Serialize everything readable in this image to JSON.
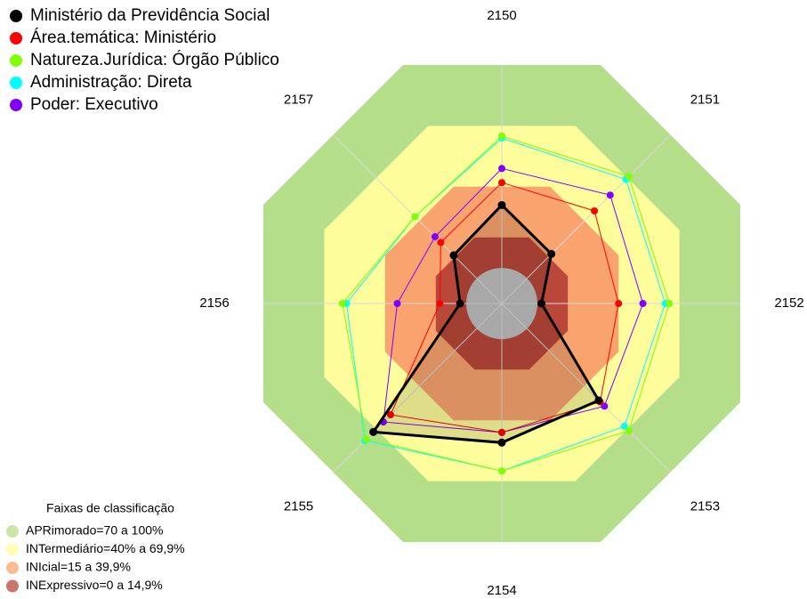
{
  "chart_data": {
    "type": "radar",
    "categories": [
      "2150",
      "2151",
      "2152",
      "2153",
      "2154",
      "2155",
      "2156",
      "2157"
    ],
    "ylim": [
      0,
      100
    ],
    "series": [
      {
        "name": "Ministério da Previdência Social",
        "color": "#000000",
        "values": [
          31,
          17,
          2,
          50,
          51,
          72,
          3,
          16
        ]
      },
      {
        "name": "Área.temática: Ministério",
        "color": "#ff0000",
        "values": [
          42,
          47,
          40,
          51,
          46,
          60,
          13,
          25
        ]
      },
      {
        "name": "Natureza.Jurídica: Órgão Público",
        "color": "#80ff00",
        "values": [
          65,
          71,
          65,
          71,
          65,
          77,
          61,
          43
        ]
      },
      {
        "name": "Administração: Direta",
        "color": "#00ffff",
        "values": [
          64,
          69,
          63,
          68,
          65,
          78,
          59,
          43
        ]
      },
      {
        "name": "Poder: Executivo",
        "color": "#8000ff",
        "values": [
          49,
          58,
          52,
          54,
          46,
          65,
          34,
          29
        ]
      }
    ],
    "legend_title": "Faixas de classificação",
    "bands": [
      {
        "label": "APRimorado=70 a 100%",
        "color": "#b5de8a",
        "from": 70,
        "to": 100
      },
      {
        "label": "INTermediário=40% a 69,9%",
        "color": "#fdfd9c",
        "from": 40,
        "to": 70
      },
      {
        "label": "INIcial=15 a 39,9%",
        "color": "#f9a46e",
        "from": 15,
        "to": 40
      },
      {
        "label": "INExpressivo=0 a 14,9%",
        "color": "#b9483a",
        "from": 0,
        "to": 15
      }
    ]
  }
}
